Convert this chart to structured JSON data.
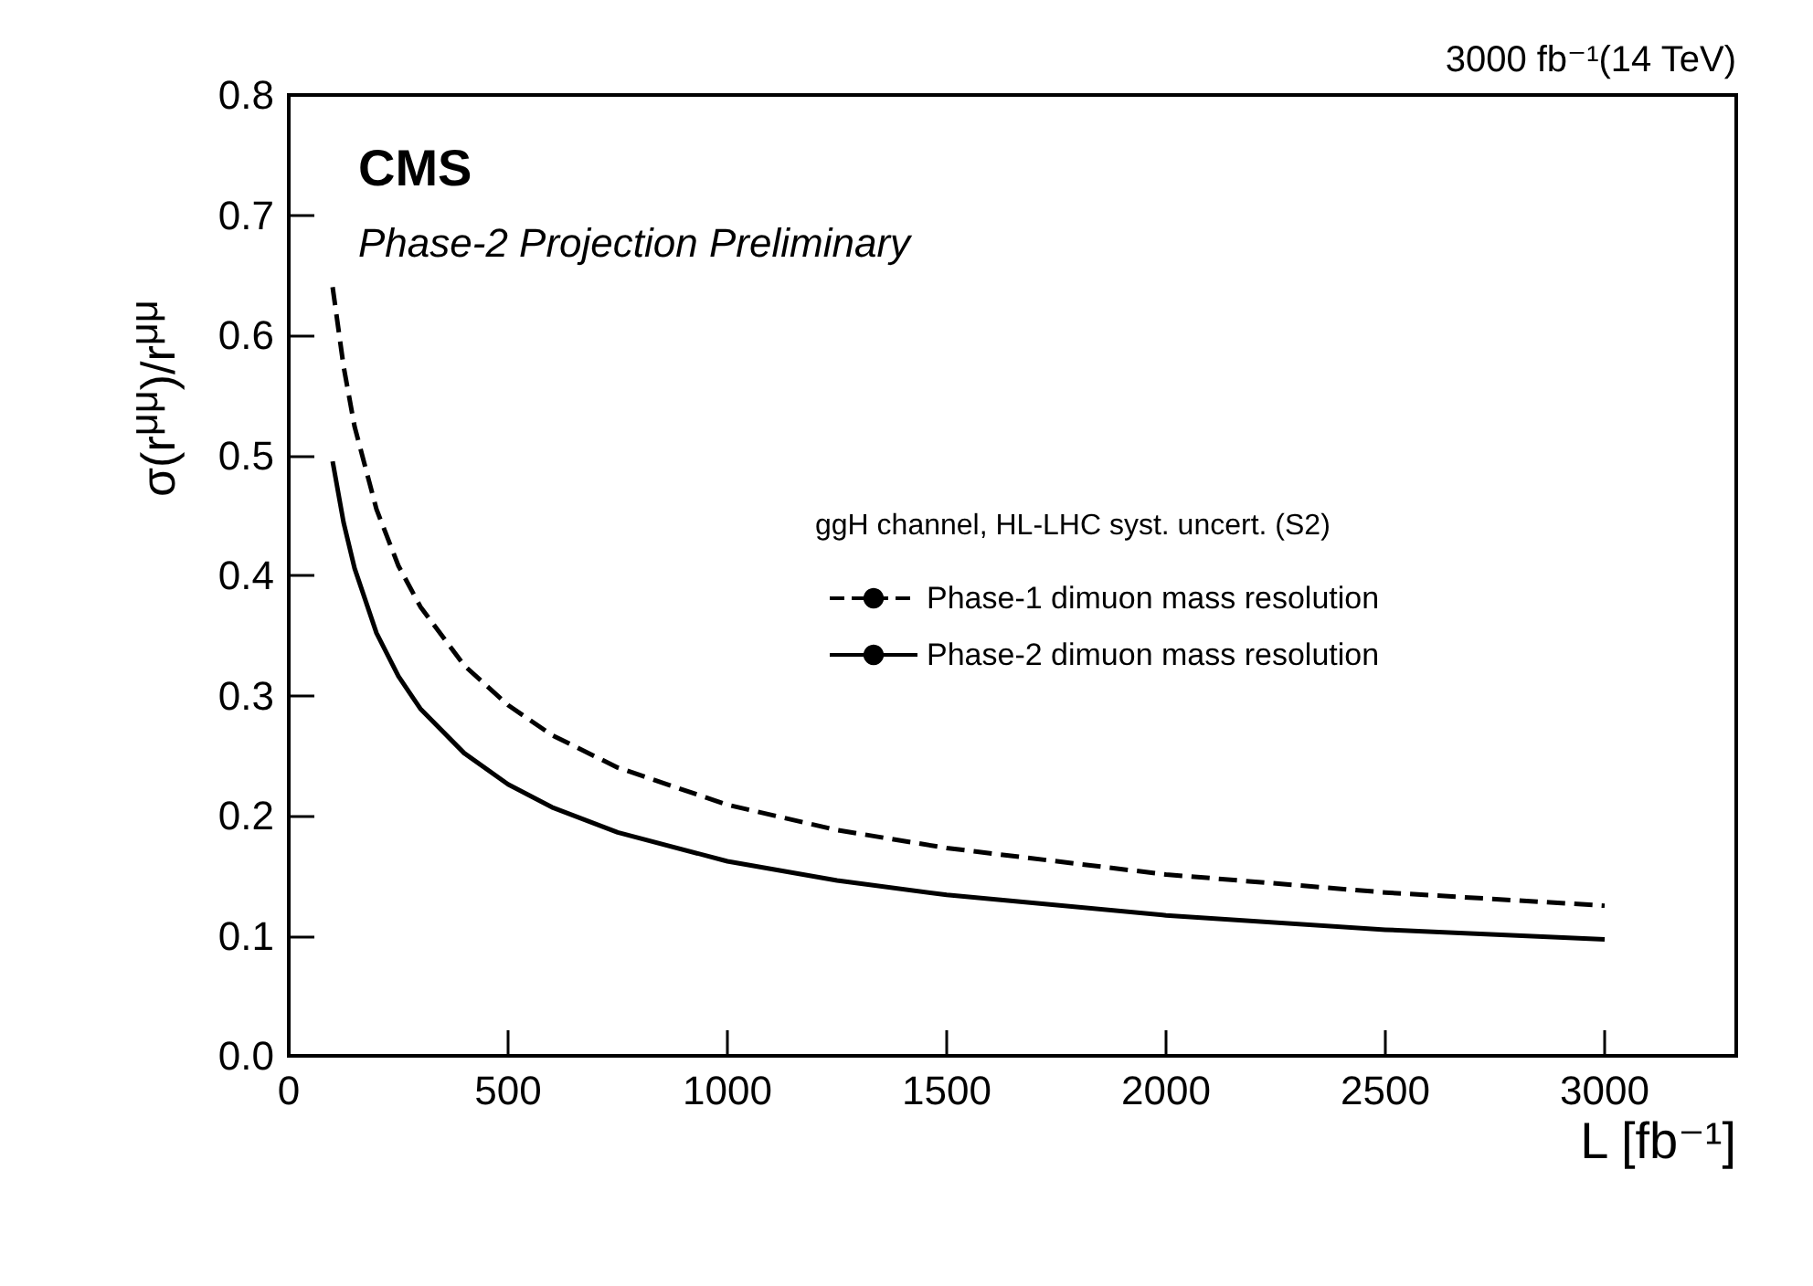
{
  "chart_data": {
    "type": "line",
    "subtitle": "3000 fb⁻¹(14 TeV)",
    "xlabel": "L [fb⁻¹]",
    "ylabel": "σ(r$^{μμ}$)/r$^{μμ}$",
    "legend_title": "ggH channel, HL-LHC syst. uncert. (S2)",
    "annotations": [
      "CMS",
      "Phase-2 Projection Preliminary"
    ],
    "x": [
      100,
      125,
      150,
      200,
      250,
      300,
      400,
      500,
      600,
      750,
      1000,
      1250,
      1500,
      2000,
      2500,
      3000
    ],
    "series": [
      {
        "name": "Phase-1 dimuon mass resolution",
        "color": "#000000",
        "line_style": "dashed",
        "values": [
          0.64,
          0.574,
          0.524,
          0.455,
          0.408,
          0.374,
          0.325,
          0.292,
          0.267,
          0.24,
          0.209,
          0.188,
          0.173,
          0.151,
          0.136,
          0.125
        ]
      },
      {
        "name": "Phase-2 dimuon mass resolution",
        "color": "#000000",
        "line_style": "solid",
        "values": [
          0.495,
          0.444,
          0.406,
          0.352,
          0.316,
          0.289,
          0.252,
          0.226,
          0.207,
          0.186,
          0.162,
          0.146,
          0.134,
          0.117,
          0.105,
          0.097
        ]
      }
    ],
    "xlim": [
      0,
      3300
    ],
    "xticks": [
      0,
      500,
      1000,
      1500,
      2000,
      2500,
      3000
    ],
    "ylim": [
      0,
      0.8
    ],
    "yticks": [
      {
        "value": 0,
        "label": "0.0"
      },
      0.1,
      0.2,
      0.3,
      0.4,
      0.5,
      0.6,
      0.7,
      0.8
    ],
    "grid": false,
    "legend": "right",
    "marker": "none"
  }
}
